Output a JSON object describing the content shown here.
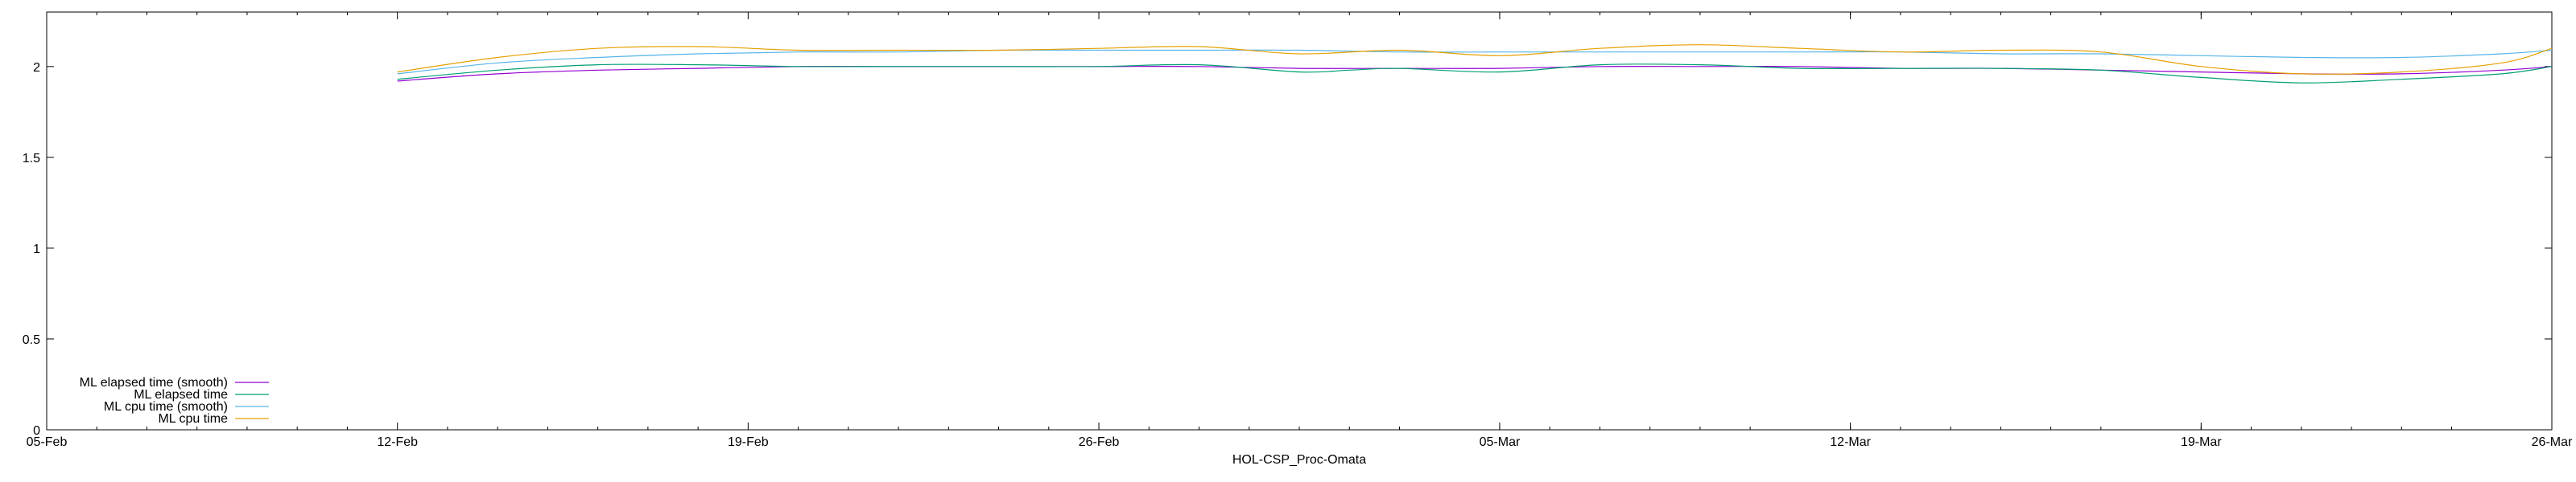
{
  "chart_data": {
    "type": "line",
    "title": "",
    "xlabel": "HOL-CSP_Proc-Omata",
    "ylabel": "",
    "x_ticks": [
      "05-Feb",
      "12-Feb",
      "19-Feb",
      "26-Feb",
      "05-Mar",
      "12-Mar",
      "19-Mar",
      "26-Mar"
    ],
    "y_ticks": [
      "0",
      "0.5",
      "1",
      "1.5",
      "2"
    ],
    "ylim": [
      0,
      2.3
    ],
    "xlim": [
      "05-Feb",
      "26-Mar"
    ],
    "grid": false,
    "legend_position": "bottom-left",
    "series": [
      {
        "name": "ML elapsed time (smooth)",
        "color": "#9400d3",
        "x": [
          "12-Feb",
          "14-Feb",
          "16-Feb",
          "18-Feb",
          "20-Feb",
          "22-Feb",
          "24-Feb",
          "26-Feb",
          "28-Feb",
          "01-Mar",
          "03-Mar",
          "05-Mar",
          "07-Mar",
          "09-Mar",
          "11-Mar",
          "13-Mar",
          "15-Mar",
          "17-Mar",
          "19-Mar",
          "21-Mar",
          "23-Mar",
          "25-Mar",
          "26-Mar"
        ],
        "values": [
          1.92,
          1.96,
          1.98,
          1.99,
          2.0,
          2.0,
          2.0,
          2.0,
          2.0,
          1.99,
          1.99,
          1.99,
          2.0,
          2.0,
          2.0,
          1.99,
          1.99,
          1.98,
          1.97,
          1.96,
          1.96,
          1.98,
          2.0
        ]
      },
      {
        "name": "ML elapsed time",
        "color": "#009e73",
        "x": [
          "12-Feb",
          "14-Feb",
          "16-Feb",
          "18-Feb",
          "20-Feb",
          "22-Feb",
          "24-Feb",
          "26-Feb",
          "28-Feb",
          "01-Mar",
          "02-Mar",
          "03-Mar",
          "05-Mar",
          "07-Mar",
          "09-Mar",
          "11-Mar",
          "13-Mar",
          "15-Mar",
          "17-Mar",
          "19-Mar",
          "21-Mar",
          "23-Mar",
          "25-Mar",
          "26-Mar"
        ],
        "values": [
          1.93,
          1.98,
          2.01,
          2.01,
          2.0,
          2.0,
          2.0,
          2.0,
          2.01,
          1.97,
          1.98,
          1.99,
          1.97,
          2.01,
          2.01,
          1.99,
          1.99,
          1.99,
          1.98,
          1.94,
          1.91,
          1.93,
          1.96,
          2.0
        ]
      },
      {
        "name": "ML cpu time (smooth)",
        "color": "#56b4e9",
        "x": [
          "12-Feb",
          "14-Feb",
          "16-Feb",
          "18-Feb",
          "20-Feb",
          "22-Feb",
          "24-Feb",
          "26-Feb",
          "28-Feb",
          "01-Mar",
          "03-Mar",
          "05-Mar",
          "07-Mar",
          "09-Mar",
          "11-Mar",
          "13-Mar",
          "15-Mar",
          "17-Mar",
          "19-Mar",
          "21-Mar",
          "23-Mar",
          "25-Mar",
          "26-Mar"
        ],
        "values": [
          1.96,
          2.02,
          2.05,
          2.07,
          2.08,
          2.08,
          2.09,
          2.09,
          2.09,
          2.09,
          2.08,
          2.08,
          2.08,
          2.08,
          2.08,
          2.08,
          2.07,
          2.07,
          2.06,
          2.05,
          2.05,
          2.07,
          2.09
        ]
      },
      {
        "name": "ML cpu time",
        "color": "#e69f00",
        "x": [
          "12-Feb",
          "14-Feb",
          "16-Feb",
          "18-Feb",
          "20-Feb",
          "22-Feb",
          "24-Feb",
          "26-Feb",
          "28-Feb",
          "01-Mar",
          "03-Mar",
          "05-Mar",
          "07-Mar",
          "09-Mar",
          "11-Mar",
          "13-Mar",
          "15-Mar",
          "17-Mar",
          "19-Mar",
          "21-Mar",
          "23-Mar",
          "25-Mar",
          "26-Mar"
        ],
        "values": [
          1.97,
          2.05,
          2.1,
          2.11,
          2.09,
          2.09,
          2.09,
          2.1,
          2.11,
          2.07,
          2.09,
          2.06,
          2.1,
          2.12,
          2.1,
          2.08,
          2.09,
          2.08,
          2.0,
          1.96,
          1.97,
          2.02,
          2.1
        ]
      }
    ]
  }
}
